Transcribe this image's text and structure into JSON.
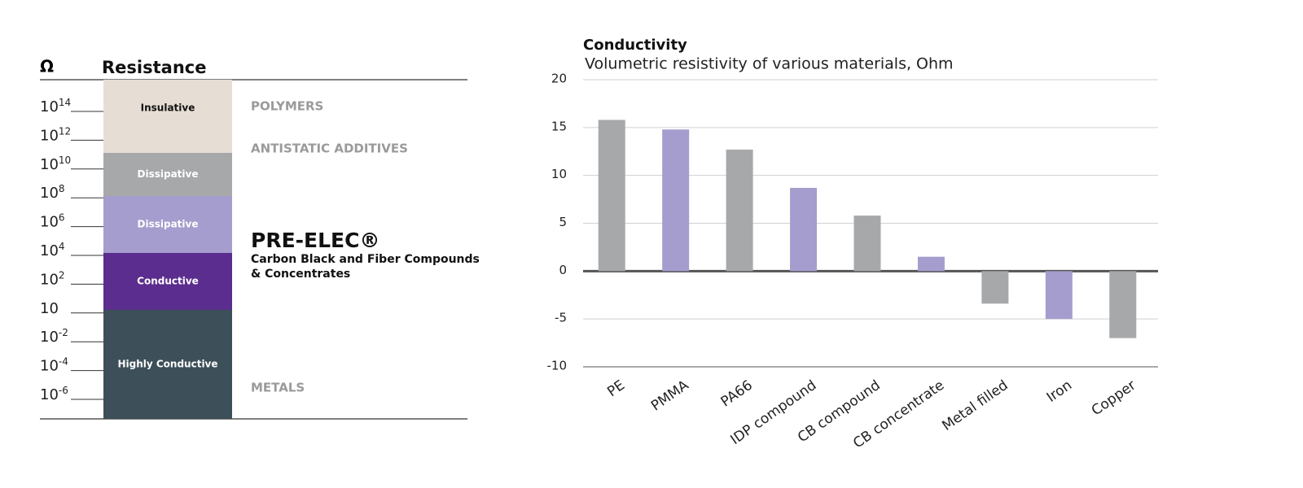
{
  "resistance_scale": {
    "symbol": "Ω",
    "title": "Resistance",
    "ticks": [
      {
        "base": "10",
        "exp": "14"
      },
      {
        "base": "10",
        "exp": "12"
      },
      {
        "base": "10",
        "exp": "10"
      },
      {
        "base": "10",
        "exp": "8"
      },
      {
        "base": "10",
        "exp": "6"
      },
      {
        "base": "10",
        "exp": "4"
      },
      {
        "base": "10",
        "exp": "2"
      },
      {
        "base": "10"
      },
      {
        "base": "10",
        "exp": "-2"
      },
      {
        "base": "10",
        "exp": "-4"
      },
      {
        "base": "10",
        "exp": "-6"
      }
    ],
    "bands": [
      {
        "label": "Insulative",
        "color": "#e6ddd4"
      },
      {
        "label": "Dissipative",
        "color": "#a7a8aa"
      },
      {
        "label": "Dissipative",
        "color": "#a59dcd"
      },
      {
        "label": "Conductive",
        "color": "#5b2d8e"
      },
      {
        "label": "Highly Conductive",
        "color": "#3d4f59"
      }
    ],
    "materials": [
      "POLYMERS",
      "ANTISTATIC ADDITIVES",
      "METALS"
    ],
    "product": {
      "name": "PRE-ELEC®",
      "description": [
        "Carbon Black and Fiber Compounds",
        "& Concentrates"
      ]
    }
  },
  "chart_data": {
    "type": "bar",
    "title": "Conductivity",
    "subtitle": "Volumetric resistivity of various materials, Ohm",
    "categories": [
      "PE",
      "PMMA",
      "PA66",
      "IDP compound",
      "CB compound",
      "CB concentrate",
      "Metal filled",
      "Iron",
      "Copper"
    ],
    "values": [
      15.8,
      14.8,
      12.7,
      8.7,
      5.8,
      1.5,
      -3.4,
      -5,
      -7
    ],
    "colors": [
      "#a7a8aa",
      "#a59dcd",
      "#a7a8aa",
      "#a59dcd",
      "#a7a8aa",
      "#a59dcd",
      "#a7a8aa",
      "#a59dcd",
      "#a7a8aa"
    ],
    "ylim": [
      -10,
      20
    ],
    "yticks": [
      -10,
      -5,
      0,
      5,
      10,
      15,
      20
    ],
    "grid": true
  }
}
